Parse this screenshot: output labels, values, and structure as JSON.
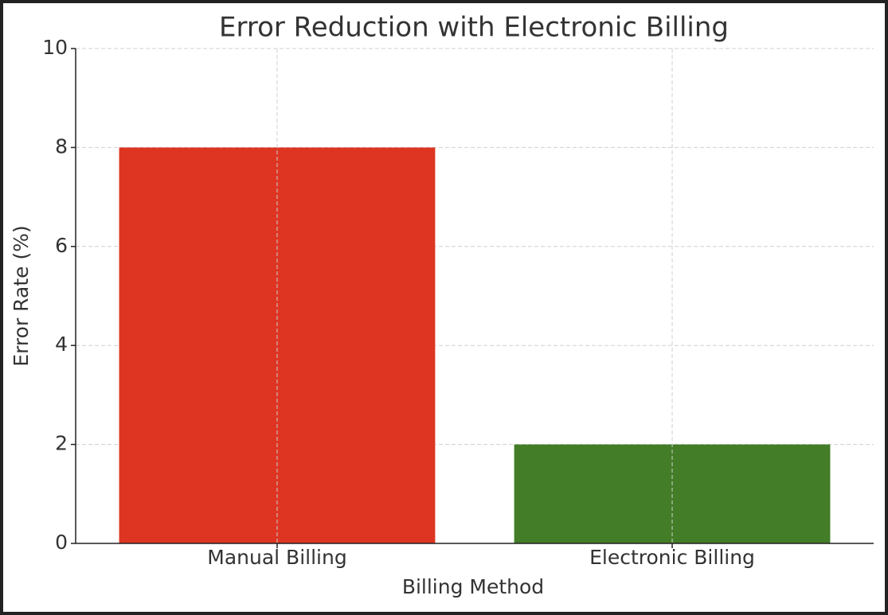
{
  "chart_data": {
    "type": "bar",
    "title": "Error Reduction with Electronic Billing",
    "x_label": "Billing Method",
    "y_label": "Error Rate (%)",
    "categories": [
      "Manual Billing",
      "Electronic Billing"
    ],
    "values": [
      8,
      2
    ],
    "colors": [
      "#dd3522",
      "#437d27"
    ],
    "ylim": [
      0,
      10
    ],
    "yticks": [
      0,
      2,
      4,
      6,
      8,
      10
    ],
    "grid": true
  }
}
